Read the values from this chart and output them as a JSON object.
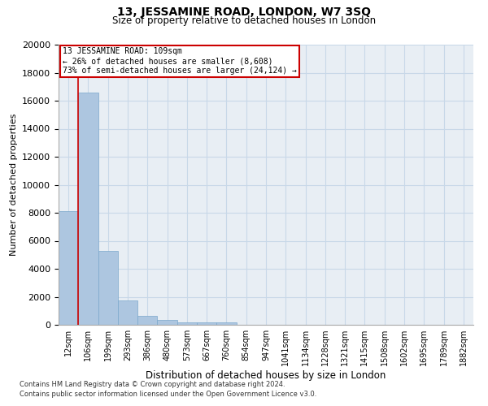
{
  "title": "13, JESSAMINE ROAD, LONDON, W7 3SQ",
  "subtitle": "Size of property relative to detached houses in London",
  "xlabel": "Distribution of detached houses by size in London",
  "ylabel": "Number of detached properties",
  "bar_labels": [
    "12sqm",
    "106sqm",
    "199sqm",
    "293sqm",
    "386sqm",
    "480sqm",
    "573sqm",
    "667sqm",
    "760sqm",
    "854sqm",
    "947sqm",
    "1041sqm",
    "1134sqm",
    "1228sqm",
    "1321sqm",
    "1415sqm",
    "1508sqm",
    "1602sqm",
    "1695sqm",
    "1789sqm",
    "1882sqm"
  ],
  "bar_values": [
    8100,
    16600,
    5300,
    1750,
    650,
    320,
    200,
    150,
    150,
    0,
    0,
    0,
    0,
    0,
    0,
    0,
    0,
    0,
    0,
    0,
    0
  ],
  "bar_color": "#adc6e0",
  "bar_edge_color": "#7aa8cc",
  "annotation_text": "13 JESSAMINE ROAD: 109sqm\n← 26% of detached houses are smaller (8,608)\n73% of semi-detached houses are larger (24,124) →",
  "annotation_box_color": "#cc0000",
  "property_line_x": 1,
  "ylim": [
    0,
    20000
  ],
  "yticks": [
    0,
    2000,
    4000,
    6000,
    8000,
    10000,
    12000,
    14000,
    16000,
    18000,
    20000
  ],
  "grid_color": "#c8d8e8",
  "background_color": "#e8eef4",
  "footer_line1": "Contains HM Land Registry data © Crown copyright and database right 2024.",
  "footer_line2": "Contains public sector information licensed under the Open Government Licence v3.0."
}
